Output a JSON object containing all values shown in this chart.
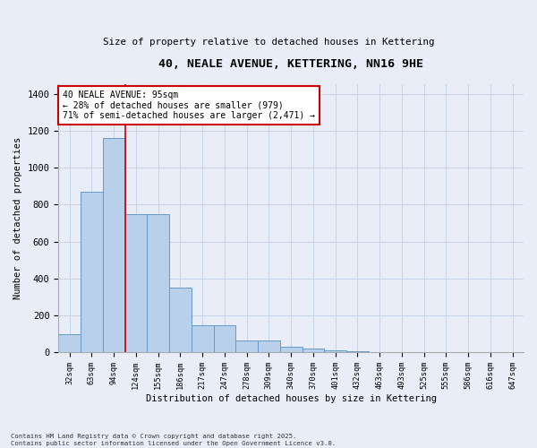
{
  "title1": "40, NEALE AVENUE, KETTERING, NN16 9HE",
  "title2": "Size of property relative to detached houses in Kettering",
  "xlabel": "Distribution of detached houses by size in Kettering",
  "ylabel": "Number of detached properties",
  "bar_labels": [
    "32sqm",
    "63sqm",
    "94sqm",
    "124sqm",
    "155sqm",
    "186sqm",
    "217sqm",
    "247sqm",
    "278sqm",
    "309sqm",
    "340sqm",
    "370sqm",
    "401sqm",
    "432sqm",
    "463sqm",
    "493sqm",
    "525sqm",
    "555sqm",
    "586sqm",
    "616sqm",
    "647sqm"
  ],
  "bar_values": [
    100,
    870,
    1160,
    750,
    750,
    350,
    145,
    145,
    65,
    65,
    30,
    20,
    10,
    5,
    2,
    0,
    0,
    0,
    0,
    0,
    0
  ],
  "bar_color": "#b8d0ea",
  "bar_edge_color": "#6699cc",
  "grid_color": "#c8d4e8",
  "background_color": "#e8edf8",
  "vline_x": 2.5,
  "vline_color": "#cc0000",
  "annotation_text": "40 NEALE AVENUE: 95sqm\n← 28% of detached houses are smaller (979)\n71% of semi-detached houses are larger (2,471) →",
  "annotation_box_color": "#ffffff",
  "annotation_box_edge": "#cc0000",
  "ylim": [
    0,
    1450
  ],
  "yticks": [
    0,
    200,
    400,
    600,
    800,
    1000,
    1200,
    1400
  ],
  "footnote": "Contains HM Land Registry data © Crown copyright and database right 2025.\nContains public sector information licensed under the Open Government Licence v3.0."
}
